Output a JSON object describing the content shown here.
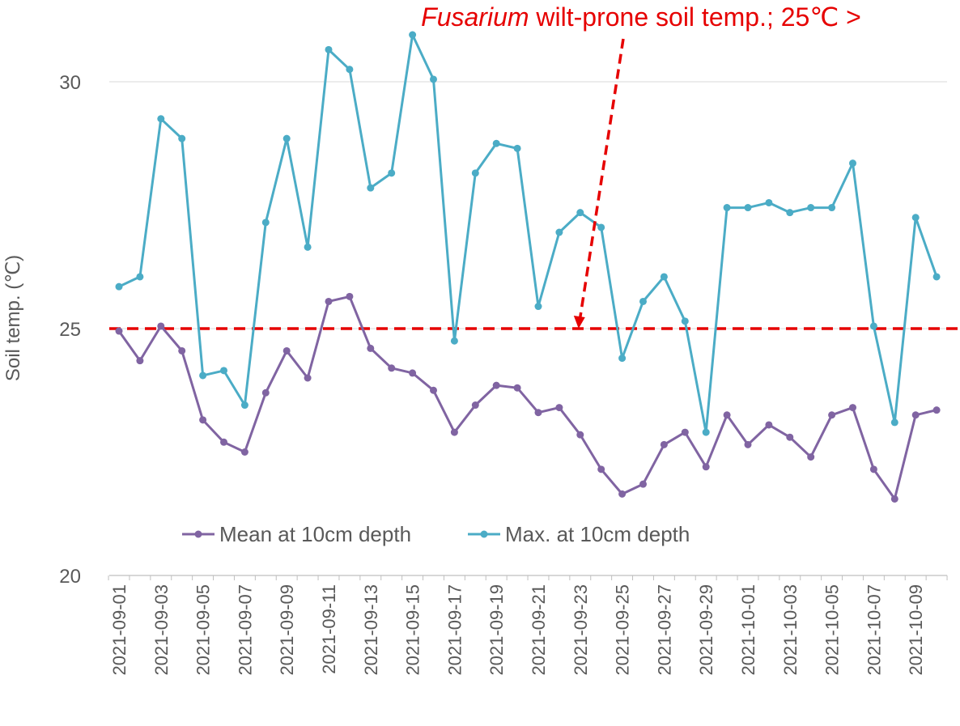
{
  "chart_data": {
    "type": "line",
    "title": "",
    "ylabel": "Soil temp. (℃)",
    "xlabel": "",
    "ylim": [
      20,
      31
    ],
    "yticks": [
      20,
      25,
      30
    ],
    "grid": true,
    "dates": [
      "2021-09-01",
      "2021-09-02",
      "2021-09-03",
      "2021-09-04",
      "2021-09-05",
      "2021-09-06",
      "2021-09-07",
      "2021-09-08",
      "2021-09-09",
      "2021-09-10",
      "2021-09-11",
      "2021-09-12",
      "2021-09-13",
      "2021-09-14",
      "2021-09-15",
      "2021-09-16",
      "2021-09-17",
      "2021-09-18",
      "2021-09-19",
      "2021-09-20",
      "2021-09-21",
      "2021-09-22",
      "2021-09-23",
      "2021-09-24",
      "2021-09-25",
      "2021-09-26",
      "2021-09-27",
      "2021-09-28",
      "2021-09-29",
      "2021-09-30",
      "2021-10-01",
      "2021-10-02",
      "2021-10-03",
      "2021-10-04",
      "2021-10-05",
      "2021-10-06",
      "2021-10-07",
      "2021-10-08",
      "2021-10-09",
      "2021-10-10"
    ],
    "tick_labels": [
      "2021-09-01",
      "2021-09-03",
      "2021-09-05",
      "2021-09-07",
      "2021-09-09",
      "2021-09-11",
      "2021-09-13",
      "2021-09-15",
      "2021-09-17",
      "2021-09-19",
      "2021-09-21",
      "2021-09-23",
      "2021-09-25",
      "2021-09-27",
      "2021-09-29",
      "2021-10-01",
      "2021-10-03",
      "2021-10-05",
      "2021-10-07",
      "2021-10-09"
    ],
    "series": [
      {
        "name": "Mean at 10cm depth",
        "color": "#8064a2",
        "values": [
          24.95,
          24.35,
          25.05,
          24.55,
          23.15,
          22.7,
          22.5,
          23.7,
          24.55,
          24.0,
          25.55,
          25.65,
          24.6,
          24.2,
          24.1,
          23.75,
          22.9,
          23.45,
          23.85,
          23.8,
          23.3,
          23.4,
          22.85,
          22.15,
          21.65,
          21.85,
          22.65,
          22.9,
          22.2,
          23.25,
          22.65,
          23.05,
          22.8,
          22.4,
          23.25,
          23.4,
          22.15,
          21.55,
          23.25,
          23.35
        ]
      },
      {
        "name": "Max. at 10cm depth",
        "color": "#4bacc6",
        "values": [
          25.85,
          26.05,
          29.25,
          28.85,
          24.05,
          24.15,
          23.45,
          27.15,
          28.85,
          26.65,
          30.65,
          30.25,
          27.85,
          28.15,
          30.95,
          30.05,
          24.75,
          28.15,
          28.75,
          28.65,
          25.45,
          26.95,
          27.35,
          27.05,
          24.4,
          25.55,
          26.05,
          25.15,
          22.9,
          27.45,
          27.45,
          27.55,
          27.35,
          27.45,
          27.45,
          28.35,
          25.05,
          23.1,
          27.25,
          26.05
        ]
      }
    ],
    "threshold": {
      "value": 25,
      "color": "#e60000",
      "style": "dashed"
    },
    "annotation": {
      "text_italic": "Fusarium",
      "text_rest": " wilt-prone soil temp.; 25℃ >",
      "arrow_target": {
        "date": "2021-09-23",
        "value": 25
      }
    },
    "legend": {
      "position": "bottom-center"
    }
  }
}
